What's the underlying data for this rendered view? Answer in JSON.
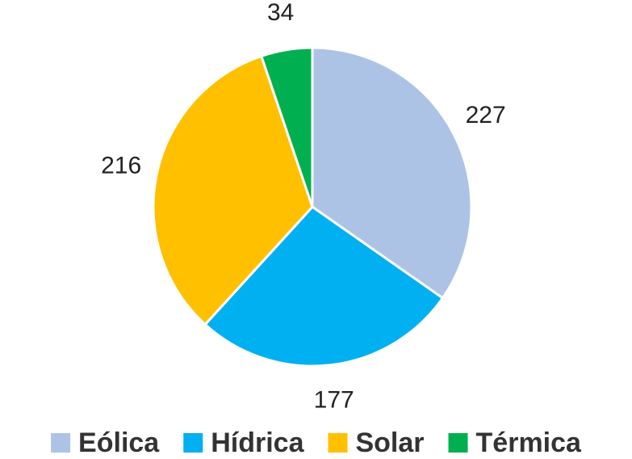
{
  "chart_data": {
    "type": "pie",
    "categories": [
      "Eólica",
      "Hídrica",
      "Solar",
      "Térmica"
    ],
    "values": [
      227,
      177,
      216,
      34
    ],
    "colors": [
      "#adc3e5",
      "#00b0f0",
      "#ffc000",
      "#00b050"
    ],
    "legend": "bottom"
  }
}
